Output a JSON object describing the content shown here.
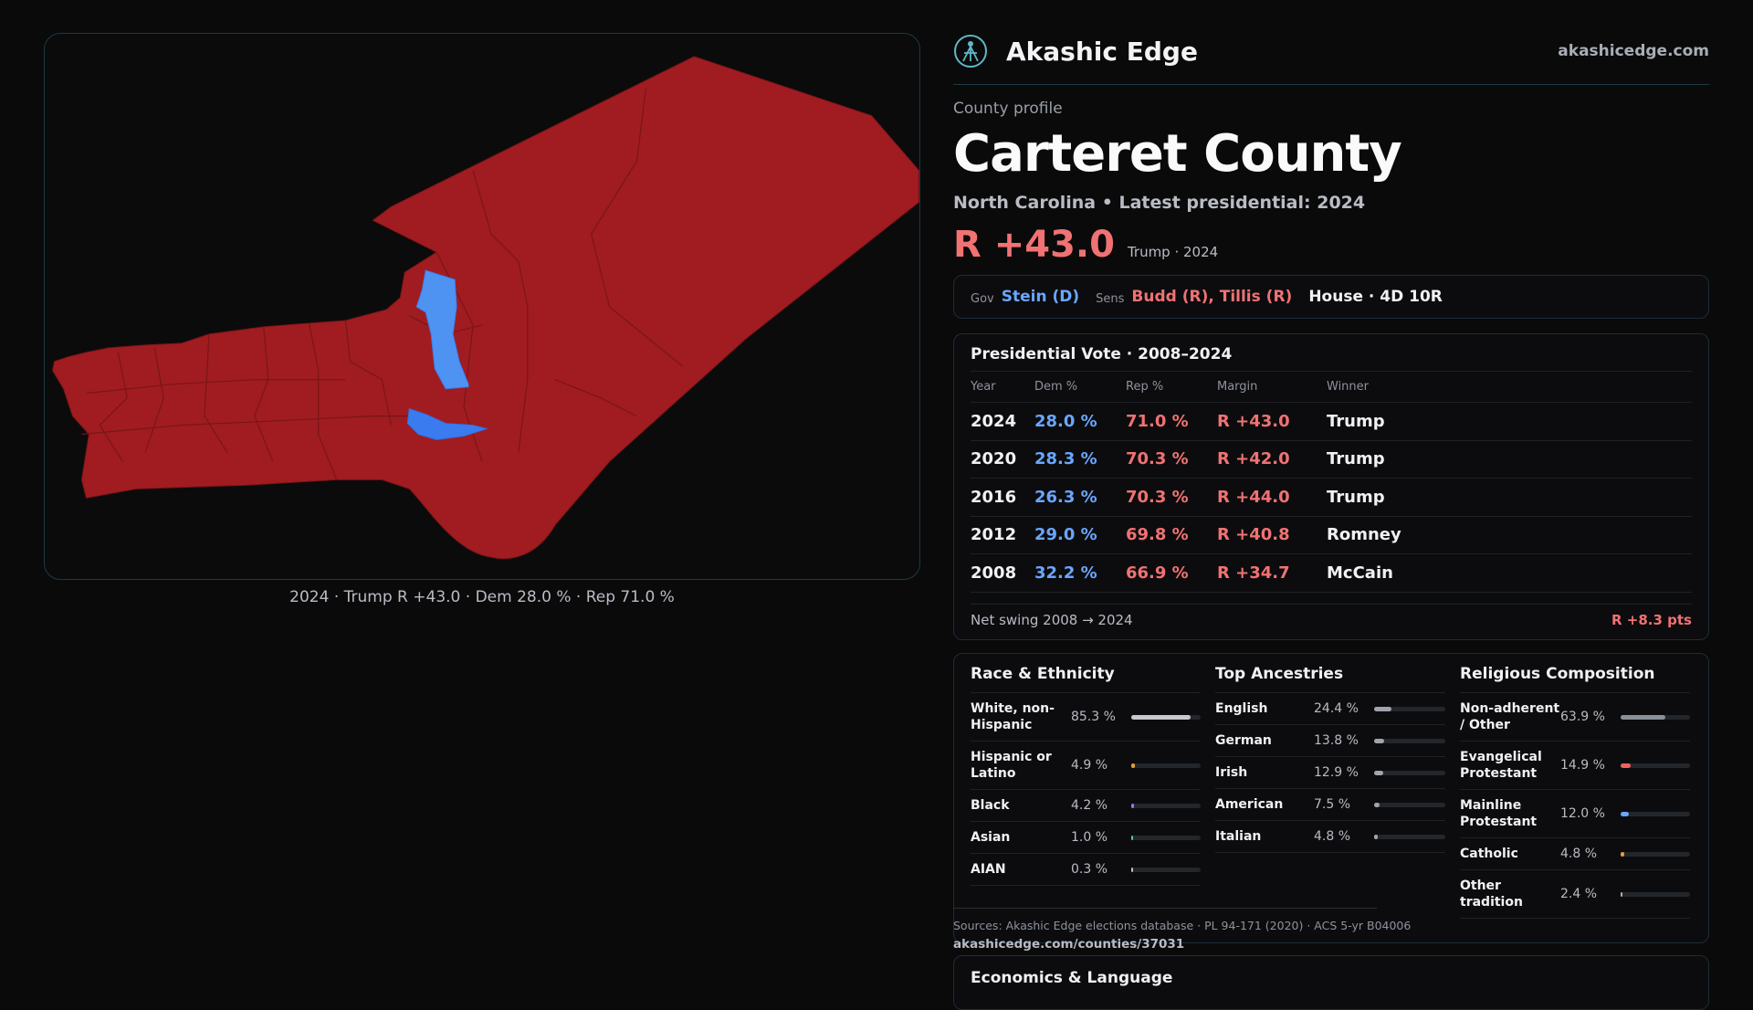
{
  "brand": {
    "name": "Akashic Edge",
    "url": "akashicedge.com"
  },
  "profile": {
    "kicker": "County profile",
    "title": "Carteret County",
    "subtitle": "North Carolina • Latest presidential: 2024",
    "margin": "R +43.0",
    "margin_note": "Trump · 2024"
  },
  "map": {
    "caption": "2024 · Trump R +43.0 · Dem 28.0 % · Rep 71.0 %",
    "colors": {
      "rep": "#a01c20",
      "dem_light": "#4f93f2",
      "dem": "#3a7cf0",
      "border": "#7a1518"
    }
  },
  "officials": {
    "gov_label": "Gov",
    "gov": "Stein (D)",
    "sens_label": "Sens",
    "sens": "Budd (R), Tillis (R)",
    "house": "House · 4D 10R"
  },
  "presidential": {
    "title": "Presidential Vote · 2008–2024",
    "headers": {
      "year": "Year",
      "dem": "Dem %",
      "rep": "Rep %",
      "margin": "Margin",
      "winner": "Winner"
    },
    "rows": [
      {
        "year": "2024",
        "dem": "28.0 %",
        "rep": "71.0 %",
        "margin": "R +43.0",
        "winner": "Trump"
      },
      {
        "year": "2020",
        "dem": "28.3 %",
        "rep": "70.3 %",
        "margin": "R +42.0",
        "winner": "Trump"
      },
      {
        "year": "2016",
        "dem": "26.3 %",
        "rep": "70.3 %",
        "margin": "R +44.0",
        "winner": "Trump"
      },
      {
        "year": "2012",
        "dem": "29.0 %",
        "rep": "69.8 %",
        "margin": "R +40.8",
        "winner": "Romney"
      },
      {
        "year": "2008",
        "dem": "32.2 %",
        "rep": "66.9 %",
        "margin": "R +34.7",
        "winner": "McCain"
      }
    ],
    "swing_label": "Net swing 2008 → 2024",
    "swing_value": "R +8.3 pts"
  },
  "race": {
    "title": "Race & Ethnicity",
    "rows": [
      {
        "label": "White, non-Hispanic",
        "value": "85.3 %",
        "frac": 0.853,
        "color": "#c7c9ce"
      },
      {
        "label": "Hispanic or Latino",
        "value": "4.9 %",
        "frac": 0.049,
        "color": "#e0a030"
      },
      {
        "label": "Black",
        "value": "4.2 %",
        "frac": 0.042,
        "color": "#8a7cf0"
      },
      {
        "label": "Asian",
        "value": "1.0 %",
        "frac": 0.01,
        "color": "#5ec2a0"
      },
      {
        "label": "AIAN",
        "value": "0.3 %",
        "frac": 0.003,
        "color": "#c0c0c0"
      }
    ]
  },
  "ancestry": {
    "title": "Top Ancestries",
    "rows": [
      {
        "label": "English",
        "value": "24.4 %",
        "frac": 0.244,
        "color": "#a0a4ad"
      },
      {
        "label": "German",
        "value": "13.8 %",
        "frac": 0.138,
        "color": "#a0a4ad"
      },
      {
        "label": "Irish",
        "value": "12.9 %",
        "frac": 0.129,
        "color": "#a0a4ad"
      },
      {
        "label": "American",
        "value": "7.5 %",
        "frac": 0.075,
        "color": "#a0a4ad"
      },
      {
        "label": "Italian",
        "value": "4.8 %",
        "frac": 0.048,
        "color": "#a0a4ad"
      }
    ]
  },
  "religion": {
    "title": "Religious Composition",
    "rows": [
      {
        "label": "Non-adherent / Other",
        "value": "63.9 %",
        "frac": 0.639,
        "color": "#8a8f98"
      },
      {
        "label": "Evangelical Protestant",
        "value": "14.9 %",
        "frac": 0.149,
        "color": "#f06060"
      },
      {
        "label": "Mainline Protestant",
        "value": "12.0 %",
        "frac": 0.12,
        "color": "#6aa6ff"
      },
      {
        "label": "Catholic",
        "value": "4.8 %",
        "frac": 0.048,
        "color": "#e0a030"
      },
      {
        "label": "Other tradition",
        "value": "2.4 %",
        "frac": 0.024,
        "color": "#b0b0b0"
      }
    ]
  },
  "sources": {
    "text": "Sources: Akashic Edge elections database · PL 94-171 (2020) · ACS 5-yr B04006",
    "url": "akashicedge.com/counties/37031"
  },
  "econ": {
    "title": "Economics & Language"
  }
}
